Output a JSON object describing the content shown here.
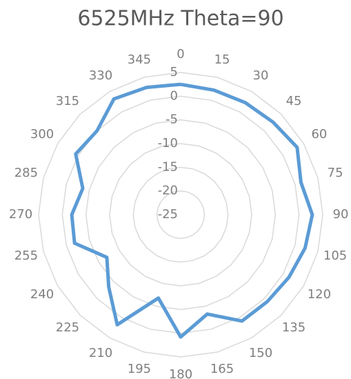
{
  "chart_data": {
    "type": "radar",
    "title": "6525MHz Theta=90",
    "categories": [
      "0",
      "15",
      "30",
      "45",
      "60",
      "75",
      "90",
      "105",
      "120",
      "135",
      "150",
      "165",
      "180",
      "195",
      "210",
      "225",
      "240",
      "255",
      "270",
      "285",
      "300",
      "315",
      "330",
      "345"
    ],
    "series": [
      {
        "name": "6525MHz Theta=90",
        "color": "#5b9bd5",
        "values": [
          2.5,
          2.2,
          2.3,
          2.6,
          3.4,
          1.3,
          2.8,
          2.2,
          1.4,
          0.9,
          0.9,
          -3.3,
          0.8,
          -6.8,
          1.8,
          -3.5,
          -7,
          -1.8,
          -2,
          -3.6,
          0.6,
          0,
          3.2,
          2.8
        ]
      }
    ],
    "ylim": [
      -25,
      5
    ],
    "yticks": [
      -25,
      -20,
      -15,
      -10,
      -5,
      0,
      5
    ],
    "grid": true
  }
}
